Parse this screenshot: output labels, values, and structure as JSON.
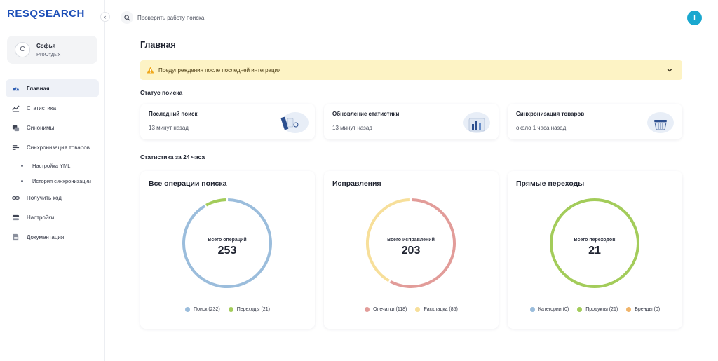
{
  "brand": {
    "logo": "RESQSEARCH"
  },
  "profile": {
    "initial": "С",
    "name": "Софья",
    "org": "ProОтдых"
  },
  "sidebar": {
    "items": [
      {
        "key": "home",
        "label": "Главная",
        "icon": "dashboard-icon"
      },
      {
        "key": "stats",
        "label": "Статистика",
        "icon": "chart-icon"
      },
      {
        "key": "synonyms",
        "label": "Синонимы",
        "icon": "synonyms-icon"
      },
      {
        "key": "sync",
        "label": "Синхронизация товаров",
        "icon": "sync-icon"
      },
      {
        "key": "yml",
        "label": "Настройка YML",
        "icon": "bullet"
      },
      {
        "key": "history",
        "label": "История синхронизации",
        "icon": "bullet"
      },
      {
        "key": "code",
        "label": "Получить код",
        "icon": "link-icon"
      },
      {
        "key": "settings",
        "label": "Настройки",
        "icon": "settings-icon"
      },
      {
        "key": "docs",
        "label": "Документация",
        "icon": "document-icon"
      }
    ],
    "active": "home"
  },
  "search": {
    "placeholder": "Проверить работу поиска"
  },
  "user": {
    "initial": "I"
  },
  "page": {
    "title": "Главная"
  },
  "warning": {
    "text": "Предупреждения после последней интеграции"
  },
  "sections": {
    "status": "Статус поиска",
    "stats": "Статистика за 24 часа"
  },
  "status_cards": [
    {
      "title": "Последний поиск",
      "time": "13 минут назад"
    },
    {
      "title": "Обновление статистики",
      "time": "13 минут назад"
    },
    {
      "title": "Синхронизация товаров",
      "time": "около 1 часа назад"
    }
  ],
  "chart_data": [
    {
      "type": "pie",
      "title": "Все операции поиска",
      "center_label": "Всего операций",
      "center_value": "253",
      "series": [
        {
          "name": "Поиск",
          "value": 232,
          "color": "#9bbddc"
        },
        {
          "name": "Переходы",
          "value": 21,
          "color": "#a3cc5a"
        }
      ],
      "legend": [
        "Поиск (232)",
        "Переходы (21)"
      ]
    },
    {
      "type": "pie",
      "title": "Исправления",
      "center_label": "Всего исправлений",
      "center_value": "203",
      "series": [
        {
          "name": "Опечатки",
          "value": 118,
          "color": "#e29c99"
        },
        {
          "name": "Раскладка",
          "value": 85,
          "color": "#f7df9a"
        }
      ],
      "legend": [
        "Опечатки (118)",
        "Раскладка (85)"
      ]
    },
    {
      "type": "pie",
      "title": "Прямые переходы",
      "center_label": "Всего переходов",
      "center_value": "21",
      "series": [
        {
          "name": "Категории",
          "value": 0,
          "color": "#9bbddc"
        },
        {
          "name": "Продукты",
          "value": 21,
          "color": "#a3cc5a"
        },
        {
          "name": "Бренды",
          "value": 0,
          "color": "#f0b46a"
        }
      ],
      "legend": [
        "Категории (0)",
        "Продукты (21)",
        "Бренды (0)"
      ]
    }
  ]
}
